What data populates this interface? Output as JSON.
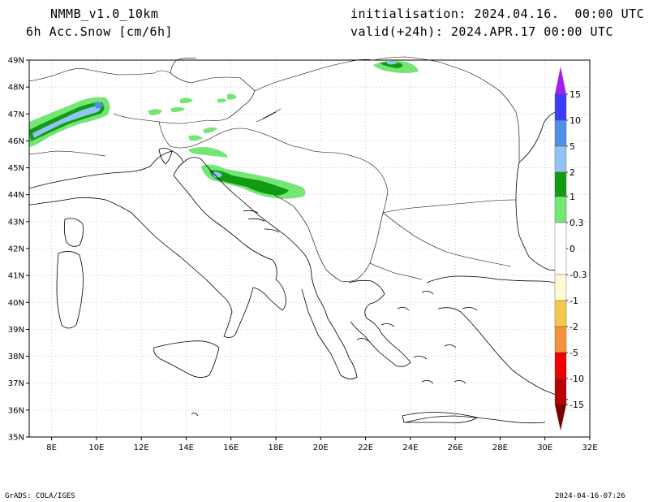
{
  "header": {
    "model": "NMMB_v1.0_10km",
    "field": "6h Acc.Snow [cm/6h]",
    "init": "initialisation: 2024.04.16.  00:00 UTC",
    "valid": "valid(+24h): 2024.APR.17 00:00 UTC"
  },
  "footer": {
    "left": "GrADS: COLA/IGES",
    "right": "2024-04-16-07:26"
  },
  "map": {
    "lon_labels": [
      "8E",
      "10E",
      "12E",
      "14E",
      "16E",
      "18E",
      "20E",
      "22E",
      "24E",
      "26E",
      "28E",
      "30E",
      "32E"
    ],
    "lat_labels": [
      "49N",
      "48N",
      "47N",
      "46N",
      "45N",
      "44N",
      "43N",
      "42N",
      "41N",
      "40N",
      "39N",
      "38N",
      "37N",
      "36N",
      "35N"
    ]
  },
  "colorbar": {
    "labels": [
      "15",
      "10",
      "5",
      "2",
      "1",
      "0.3",
      "0",
      "-0.3",
      "-1",
      "-2",
      "-5",
      "-10",
      "-15"
    ],
    "colors": {
      "top_arrow": "#a020f0",
      "c15": "#3c3cff",
      "c10": "#4f8fe8",
      "c5": "#8fc4f5",
      "c2": "#139a13",
      "c1": "#73e673",
      "zero": "#ffffff",
      "n03": "#fffbd0",
      "n1": "#f5c94b",
      "n2": "#f3933c",
      "n5": "#ee0000",
      "n10": "#b80000",
      "bottom_arrow": "#7a0000"
    }
  },
  "snow_colors": {
    "light": "#73e673",
    "moderate": "#139a13",
    "heavy": "#8fc4f5",
    "very_heavy": "#4f8fe8"
  }
}
